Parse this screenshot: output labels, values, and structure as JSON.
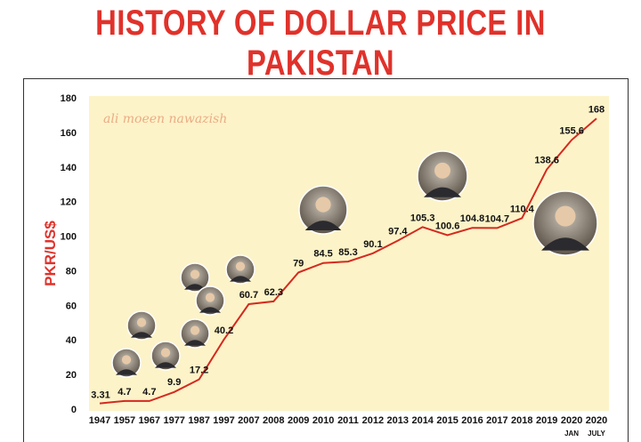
{
  "header": {
    "title": "HISTORY OF DOLLAR PRICE IN PAKISTAN"
  },
  "watermark": "ali moeen nawazish",
  "colors": {
    "accent": "#e0322b",
    "plot_bg": "#fdf3c8",
    "line": "#d42a20"
  },
  "chart_data": {
    "type": "line",
    "title": "HISTORY OF DOLLAR PRICE IN PAKISTAN",
    "xlabel": "",
    "ylabel": "PKR/US$",
    "ylim": [
      0,
      180
    ],
    "yticks": [
      0,
      20,
      40,
      60,
      80,
      100,
      120,
      140,
      160,
      180
    ],
    "grid": false,
    "legend": "none",
    "categories": [
      "1947",
      "1957",
      "1967",
      "1977",
      "1987",
      "1997",
      "2007",
      "2008",
      "2009",
      "2010",
      "2011",
      "2012",
      "2013",
      "2014",
      "2015",
      "2016",
      "2017",
      "2018",
      "2019",
      "2020",
      "2020"
    ],
    "category_sublabels": [
      "",
      "",
      "",
      "",
      "",
      "",
      "",
      "",
      "",
      "",
      "",
      "",
      "",
      "",
      "",
      "",
      "",
      "",
      "",
      "JAN",
      "JULY"
    ],
    "values": [
      3.31,
      4.7,
      4.7,
      9.9,
      17.2,
      40.2,
      60.7,
      62.3,
      79,
      84.5,
      85.3,
      90.1,
      97.4,
      105.3,
      100.6,
      104.8,
      104.7,
      110.4,
      138.6,
      155.6,
      168
    ],
    "labels": [
      "3.31",
      "4.7",
      "4.7",
      "9.9",
      "17.2",
      "40.2",
      "60.7",
      "62.3",
      "79",
      "84.5",
      "85.3",
      "90.1",
      "97.4",
      "105.3",
      "100.6",
      "104.8",
      "104.7",
      "110.4",
      "138.6",
      "155.6",
      "168"
    ],
    "highlight_last_color": "#e0322b"
  }
}
